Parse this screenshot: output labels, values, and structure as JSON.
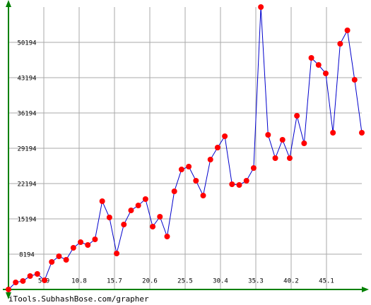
{
  "chart_data": {
    "type": "line",
    "footer": "iTools.SubhashBose.com/grapher",
    "x": [
      1,
      2,
      3,
      4,
      5,
      6,
      7,
      8,
      9,
      10,
      11,
      12,
      13,
      14,
      15,
      16,
      17,
      18,
      19,
      20,
      21,
      22,
      23,
      24,
      25,
      26,
      27,
      28,
      29,
      30,
      31,
      32,
      33,
      34,
      35,
      36,
      37,
      38,
      39,
      40,
      41,
      42,
      43,
      44,
      45,
      46,
      47,
      48,
      49,
      50
    ],
    "series": [
      {
        "color": "#0000cc",
        "marker_color": "#ff0000",
        "values": [
          1194,
          2594,
          2874,
          3854,
          4274,
          3014,
          6654,
          7774,
          7074,
          9454,
          10574,
          10014,
          11134,
          18694,
          15474,
          8334,
          14074,
          16874,
          17854,
          19114,
          13654,
          15614,
          11694,
          20654,
          24994,
          25554,
          22754,
          19814,
          26954,
          29334,
          31574,
          22054,
          21914,
          22754,
          25274,
          57194,
          31854,
          27234,
          30874,
          27234,
          35634,
          30174,
          47114,
          45714,
          44034,
          32274,
          49914,
          52574,
          42774,
          32274
        ]
      }
    ],
    "xlim": [
      1,
      50
    ],
    "xticks": [
      5.9,
      10.8,
      15.7,
      20.6,
      25.5,
      30.4,
      35.3,
      40.2,
      45.1
    ],
    "ylim": [
      1194,
      57194
    ],
    "yticks": [
      8194,
      15194,
      22194,
      29194,
      36194,
      43194,
      50194
    ],
    "grid": true
  }
}
